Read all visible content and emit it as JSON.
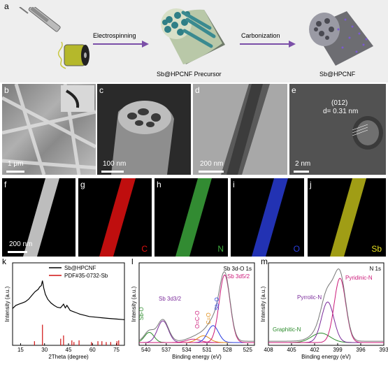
{
  "panel_a": {
    "label": "a",
    "arrow1": "Electrospinning",
    "arrow2": "Carbonization",
    "caption1": "Sb@HPCNF Precursor",
    "caption2": "Sb@HPCNF",
    "arrow_color": "#7b4fa8"
  },
  "micro": [
    {
      "label": "b",
      "scale": "1 μm"
    },
    {
      "label": "c",
      "scale": "100 nm"
    },
    {
      "label": "d",
      "scale": "200 nm"
    },
    {
      "label": "e",
      "scale": "2 nm",
      "annot1": "(012)",
      "annot2": "d= 0.31 nm"
    }
  ],
  "maps": [
    {
      "label": "f",
      "scale": "200 nm",
      "element": ""
    },
    {
      "label": "g",
      "element": "C",
      "color": "#e01010"
    },
    {
      "label": "h",
      "element": "N",
      "color": "#3fae3f"
    },
    {
      "label": "i",
      "element": "O",
      "color": "#2a3ee0"
    },
    {
      "label": "j",
      "element": "Sb",
      "color": "#e6e020"
    }
  ],
  "chart_data": [
    {
      "label": "k",
      "type": "line",
      "xlabel": "2Theta (degree)",
      "ylabel": "Intensity (a.u.)",
      "xlim": [
        10,
        80
      ],
      "xticks": [
        "15",
        "30",
        "45",
        "60",
        "75"
      ],
      "legend": [
        {
          "name": "Sb@HPCNF",
          "color": "#000000"
        },
        {
          "name": "PDF#35-0732-Sb",
          "color": "#d01010"
        }
      ],
      "series": [
        {
          "name": "Sb@HPCNF",
          "color": "#000000",
          "x": [
            10,
            12,
            14,
            16,
            18,
            20,
            22,
            24,
            26,
            27,
            28,
            28.7,
            29.5,
            30.5,
            32,
            34,
            36,
            38,
            40,
            41.9,
            43,
            44,
            46,
            48,
            50,
            52,
            55,
            58,
            62,
            66,
            70,
            75,
            80
          ],
          "y": [
            0.55,
            0.6,
            0.62,
            0.64,
            0.66,
            0.7,
            0.76,
            0.82,
            0.86,
            0.9,
            0.92,
            1.0,
            0.88,
            0.78,
            0.7,
            0.64,
            0.6,
            0.57,
            0.56,
            0.62,
            0.56,
            0.6,
            0.52,
            0.5,
            0.48,
            0.46,
            0.44,
            0.42,
            0.41,
            0.4,
            0.39,
            0.38,
            0.37
          ]
        }
      ],
      "reference": {
        "name": "PDF#35-0732-Sb",
        "color": "#d01010",
        "x": [
          23.7,
          28.7,
          40.1,
          41.9,
          47.1,
          48.4,
          51.6,
          59.4,
          63.4,
          65.9,
          68.6,
          71.4,
          75.3,
          76.4
        ],
        "y": [
          0.05,
          0.25,
          0.08,
          0.12,
          0.06,
          0.04,
          0.06,
          0.04,
          0.05,
          0.05,
          0.04,
          0.04,
          0.05,
          0.06
        ]
      }
    },
    {
      "label": "l",
      "type": "line",
      "title": "Sb 3d-O 1s",
      "xlabel": "Binding energy (eV)",
      "ylabel": "Intensity (a.u.)",
      "xlim": [
        541,
        524
      ],
      "xticks": [
        "540",
        "537",
        "534",
        "531",
        "528",
        "525"
      ],
      "annotations": [
        {
          "text": "Sb 3d3/2",
          "color": "#7a2a9a"
        },
        {
          "text": "Sb 3d5/2",
          "color": "#cc1a7a"
        },
        {
          "text": "Sb-O",
          "color": "#2a8a2a"
        },
        {
          "text": "O=C-O",
          "color": "#cc1a7a"
        },
        {
          "text": "C=O",
          "color": "#e08a10"
        },
        {
          "text": "Sb-O",
          "color": "#2a3ee0"
        }
      ],
      "peaks": [
        {
          "name": "Sb-O",
          "center": 539.5,
          "height": 0.15,
          "width": 0.7,
          "color": "#2a8a2a"
        },
        {
          "name": "Sb 3d3/2",
          "center": 537.5,
          "height": 0.32,
          "width": 0.8,
          "color": "#7a2a9a"
        },
        {
          "name": "O=C-O",
          "center": 533.0,
          "height": 0.05,
          "width": 1.0,
          "color": "#cc1a7a"
        },
        {
          "name": "C=O",
          "center": 531.5,
          "height": 0.1,
          "width": 0.9,
          "color": "#e08a10"
        },
        {
          "name": "Sb-O",
          "center": 530.1,
          "height": 0.25,
          "width": 0.8,
          "color": "#2a3ee0"
        },
        {
          "name": "Sb 3d5/2",
          "center": 528.4,
          "height": 1.0,
          "width": 0.8,
          "color": "#cc1a7a"
        }
      ]
    },
    {
      "label": "m",
      "type": "line",
      "title": "N 1s",
      "xlabel": "Binding energy (eV)",
      "ylabel": "Intensity (a.u.)",
      "xlim": [
        408,
        393
      ],
      "xticks": [
        "408",
        "405",
        "402",
        "399",
        "396",
        "393"
      ],
      "annotations": [
        {
          "text": "Pyridinic-N",
          "color": "#cc1a7a"
        },
        {
          "text": "Pyrrolic-N",
          "color": "#7a2a9a"
        },
        {
          "text": "Graphitic-N",
          "color": "#2a8a2a"
        }
      ],
      "peaks": [
        {
          "name": "Graphitic-N",
          "center": 401.2,
          "height": 0.14,
          "width": 1.2,
          "color": "#2a8a2a"
        },
        {
          "name": "Pyrrolic-N",
          "center": 400.3,
          "height": 0.6,
          "width": 0.8,
          "color": "#7a2a9a"
        },
        {
          "name": "Pyridinic-N",
          "center": 398.7,
          "height": 0.95,
          "width": 0.75,
          "color": "#cc1a7a"
        }
      ]
    }
  ]
}
